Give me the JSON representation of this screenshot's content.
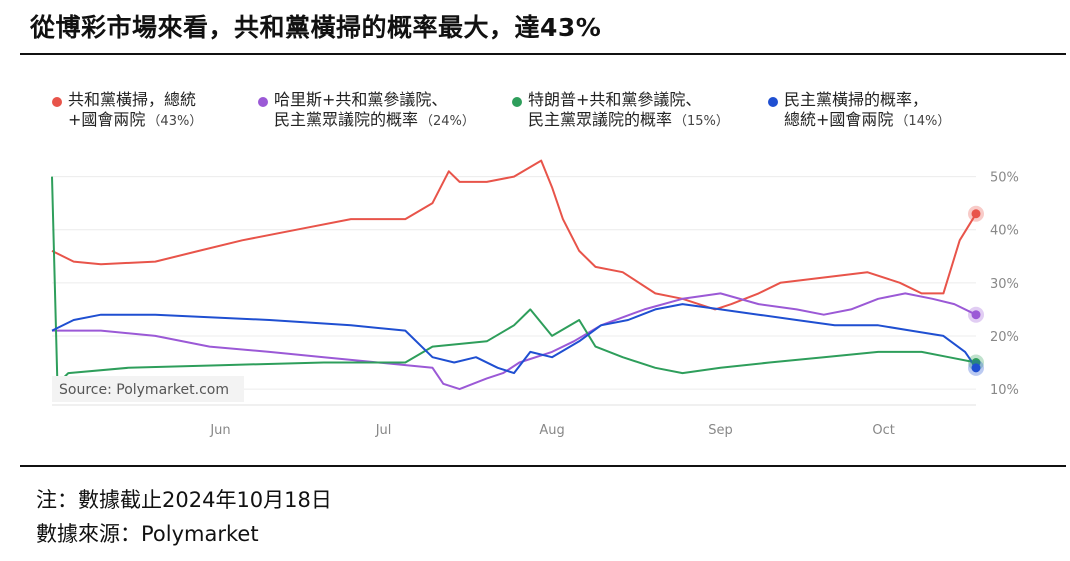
{
  "title": "從博彩市場來看，共和黨橫掃的概率最大，達43%",
  "legend": [
    {
      "line1": "共和黨橫掃，總統",
      "line2": "+國會兩院",
      "pct": "（43%）",
      "color": "#e8544a"
    },
    {
      "line1": "哈里斯+共和黨參議院、",
      "line2": "民主黨眾議院的概率",
      "pct": "（24%）",
      "color": "#9b59d6"
    },
    {
      "line1": "特朗普+共和黨參議院、",
      "line2": "民主黨眾議院的概率",
      "pct": "（15%）",
      "color": "#2e9e5b"
    },
    {
      "line1": "民主黨橫掃的概率，",
      "line2": "總統+國會兩院",
      "pct": "（14%）",
      "color": "#1f4fd1"
    }
  ],
  "source": "Source: Polymarket.com",
  "notes": {
    "date_note": "注：數據截止2024年10月18日",
    "source_note": "數據來源：Polymarket"
  },
  "chart_data": {
    "type": "line",
    "x_ticks": [
      "Jun",
      "Jul",
      "Aug",
      "Sep",
      "Oct"
    ],
    "y_ticks": [
      "50%",
      "40%",
      "30%",
      "20%",
      "10%"
    ],
    "y_tick_values": [
      50,
      40,
      30,
      20,
      10
    ],
    "x_range": [
      "2024-05-01",
      "2024-10-18"
    ],
    "ylim": [
      7,
      55
    ],
    "grid": true,
    "legend_position": "top",
    "series": [
      {
        "name": "共和黨橫掃，總統+國會兩院",
        "color": "#e8544a",
        "points": [
          [
            "2024-05-01",
            36
          ],
          [
            "2024-05-05",
            34
          ],
          [
            "2024-05-10",
            33.5
          ],
          [
            "2024-05-20",
            34
          ],
          [
            "2024-05-28",
            36
          ],
          [
            "2024-06-05",
            38
          ],
          [
            "2024-06-15",
            40
          ],
          [
            "2024-06-25",
            42
          ],
          [
            "2024-07-05",
            42
          ],
          [
            "2024-07-10",
            45
          ],
          [
            "2024-07-13",
            51
          ],
          [
            "2024-07-15",
            49
          ],
          [
            "2024-07-20",
            49
          ],
          [
            "2024-07-25",
            50
          ],
          [
            "2024-07-30",
            53
          ],
          [
            "2024-08-01",
            48
          ],
          [
            "2024-08-03",
            42
          ],
          [
            "2024-08-06",
            36
          ],
          [
            "2024-08-09",
            33
          ],
          [
            "2024-08-14",
            32
          ],
          [
            "2024-08-20",
            28
          ],
          [
            "2024-08-25",
            27
          ],
          [
            "2024-08-31",
            25
          ],
          [
            "2024-09-03",
            26
          ],
          [
            "2024-09-08",
            28
          ],
          [
            "2024-09-12",
            30
          ],
          [
            "2024-09-20",
            31
          ],
          [
            "2024-09-28",
            32
          ],
          [
            "2024-10-04",
            30
          ],
          [
            "2024-10-08",
            28
          ],
          [
            "2024-10-12",
            28
          ],
          [
            "2024-10-15",
            38
          ],
          [
            "2024-10-18",
            43
          ]
        ]
      },
      {
        "name": "哈里斯+共和黨參議院、民主黨眾議院的概率",
        "color": "#9b59d6",
        "points": [
          [
            "2024-05-01",
            21
          ],
          [
            "2024-05-10",
            21
          ],
          [
            "2024-05-20",
            20
          ],
          [
            "2024-05-30",
            18
          ],
          [
            "2024-06-10",
            17
          ],
          [
            "2024-06-20",
            16
          ],
          [
            "2024-06-30",
            15
          ],
          [
            "2024-07-10",
            14
          ],
          [
            "2024-07-12",
            11
          ],
          [
            "2024-07-15",
            10
          ],
          [
            "2024-07-20",
            12
          ],
          [
            "2024-07-23",
            13
          ],
          [
            "2024-07-26",
            15
          ],
          [
            "2024-08-01",
            17
          ],
          [
            "2024-08-05",
            19
          ],
          [
            "2024-08-10",
            22
          ],
          [
            "2024-08-18",
            25
          ],
          [
            "2024-08-25",
            27
          ],
          [
            "2024-09-01",
            28
          ],
          [
            "2024-09-08",
            26
          ],
          [
            "2024-09-15",
            25
          ],
          [
            "2024-09-20",
            24
          ],
          [
            "2024-09-25",
            25
          ],
          [
            "2024-09-30",
            27
          ],
          [
            "2024-10-05",
            28
          ],
          [
            "2024-10-10",
            27
          ],
          [
            "2024-10-14",
            26
          ],
          [
            "2024-10-18",
            24
          ]
        ]
      },
      {
        "name": "特朗普+共和黨參議院、民主黨眾議院的概率",
        "color": "#2e9e5b",
        "points": [
          [
            "2024-05-01",
            50
          ],
          [
            "2024-05-02",
            11
          ],
          [
            "2024-05-04",
            13
          ],
          [
            "2024-05-15",
            14
          ],
          [
            "2024-06-01",
            14.5
          ],
          [
            "2024-06-20",
            15
          ],
          [
            "2024-07-05",
            15
          ],
          [
            "2024-07-10",
            18
          ],
          [
            "2024-07-20",
            19
          ],
          [
            "2024-07-25",
            22
          ],
          [
            "2024-07-28",
            25
          ],
          [
            "2024-08-01",
            20
          ],
          [
            "2024-08-06",
            23
          ],
          [
            "2024-08-09",
            18
          ],
          [
            "2024-08-14",
            16
          ],
          [
            "2024-08-20",
            14
          ],
          [
            "2024-08-25",
            13
          ],
          [
            "2024-09-01",
            14
          ],
          [
            "2024-09-10",
            15
          ],
          [
            "2024-09-20",
            16
          ],
          [
            "2024-09-30",
            17
          ],
          [
            "2024-10-08",
            17
          ],
          [
            "2024-10-13",
            16
          ],
          [
            "2024-10-18",
            15
          ]
        ]
      },
      {
        "name": "民主黨橫掃的概率，總統+國會兩院",
        "color": "#1f4fd1",
        "points": [
          [
            "2024-05-01",
            21
          ],
          [
            "2024-05-05",
            23
          ],
          [
            "2024-05-10",
            24
          ],
          [
            "2024-05-20",
            24
          ],
          [
            "2024-06-10",
            23
          ],
          [
            "2024-06-25",
            22
          ],
          [
            "2024-07-05",
            21
          ],
          [
            "2024-07-10",
            16
          ],
          [
            "2024-07-14",
            15
          ],
          [
            "2024-07-18",
            16
          ],
          [
            "2024-07-22",
            14
          ],
          [
            "2024-07-25",
            13
          ],
          [
            "2024-07-28",
            17
          ],
          [
            "2024-08-01",
            16
          ],
          [
            "2024-08-06",
            19
          ],
          [
            "2024-08-10",
            22
          ],
          [
            "2024-08-15",
            23
          ],
          [
            "2024-08-20",
            25
          ],
          [
            "2024-08-25",
            26
          ],
          [
            "2024-09-01",
            25
          ],
          [
            "2024-09-08",
            24
          ],
          [
            "2024-09-15",
            23
          ],
          [
            "2024-09-22",
            22
          ],
          [
            "2024-09-30",
            22
          ],
          [
            "2024-10-06",
            21
          ],
          [
            "2024-10-12",
            20
          ],
          [
            "2024-10-16",
            17
          ],
          [
            "2024-10-18",
            14
          ]
        ]
      }
    ]
  }
}
